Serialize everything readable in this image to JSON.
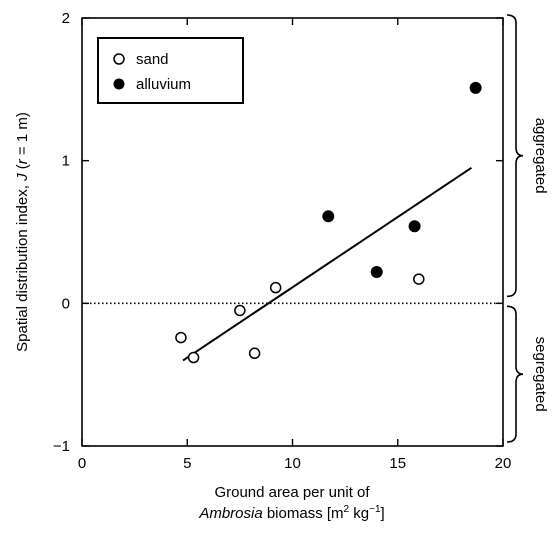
{
  "chart_data": {
    "type": "scatter",
    "title": "",
    "xlabel_parts": [
      "Ground area per unit of",
      "Ambrosia",
      " biomass [m",
      "2",
      " kg",
      "−1",
      "]"
    ],
    "ylabel_parts": [
      "Spatial distribution index, ",
      "J",
      " (",
      "r",
      " = 1 m)"
    ],
    "xlim": [
      0,
      20
    ],
    "ylim": [
      -1,
      2
    ],
    "xticks": [
      0,
      5,
      10,
      15,
      20
    ],
    "yticks": [
      -1,
      0,
      1,
      2
    ],
    "xtick_labels": [
      "0",
      "5",
      "10",
      "15",
      "20"
    ],
    "ytick_labels": [
      "−1",
      "0",
      "1",
      "2"
    ],
    "reference_line": {
      "y": 0,
      "style": "dotted"
    },
    "legend": {
      "placement": "top-left",
      "entries": [
        "sand",
        "alluvium"
      ]
    },
    "series": [
      {
        "name": "sand",
        "marker": "open-circle",
        "points": [
          [
            4.7,
            -0.24
          ],
          [
            5.3,
            -0.38
          ],
          [
            7.5,
            -0.05
          ],
          [
            8.2,
            -0.35
          ],
          [
            9.2,
            0.11
          ],
          [
            16.0,
            0.17
          ]
        ]
      },
      {
        "name": "alluvium",
        "marker": "filled-circle",
        "points": [
          [
            11.7,
            0.61
          ],
          [
            14.0,
            0.22
          ],
          [
            15.8,
            0.54
          ],
          [
            18.7,
            1.51
          ]
        ]
      }
    ],
    "fit_line": {
      "x": [
        4.8,
        18.5
      ],
      "y": [
        -0.4,
        0.95
      ]
    },
    "side_labels": [
      {
        "text": "aggregated",
        "range": [
          0,
          2
        ]
      },
      {
        "text": "segregated",
        "range": [
          -1,
          0
        ]
      }
    ]
  }
}
